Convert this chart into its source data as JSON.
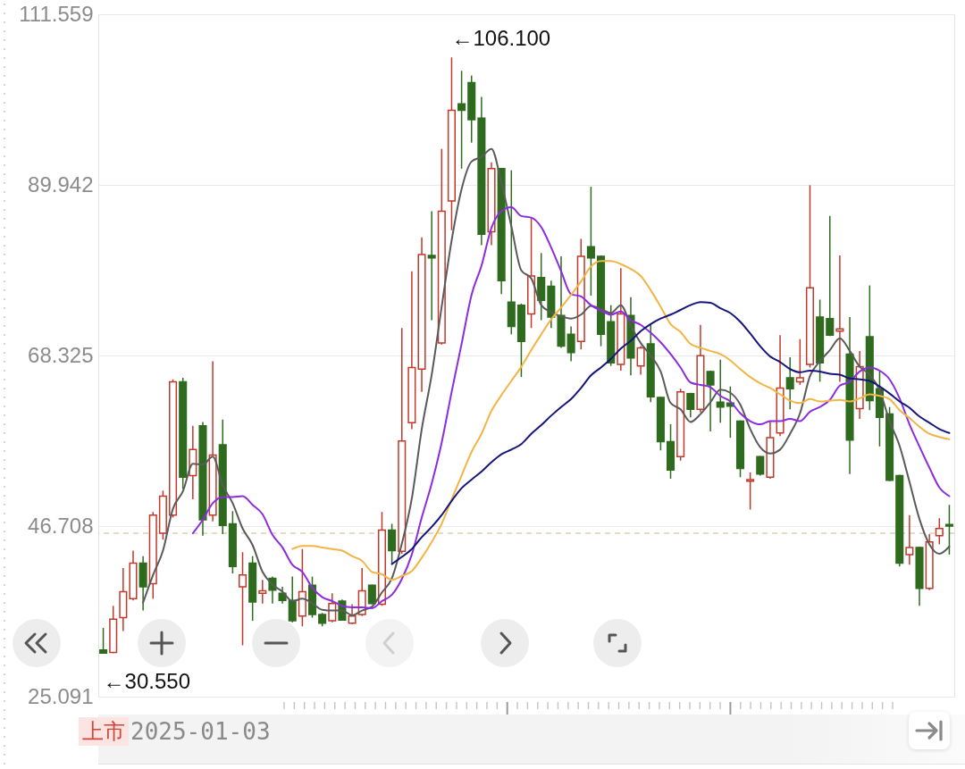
{
  "chart_data": {
    "type": "candlestick",
    "categories": [
      null,
      null,
      null,
      null,
      null,
      null,
      null,
      null,
      null,
      null,
      null,
      null,
      null,
      null,
      null,
      null,
      null,
      null,
      null,
      null,
      null,
      null,
      null,
      null,
      null,
      null,
      null,
      null,
      null,
      null,
      null,
      null,
      null,
      null,
      null,
      null,
      null,
      null,
      null,
      null,
      null,
      null,
      null,
      null,
      null,
      null,
      null,
      null,
      null,
      null,
      null,
      null,
      null,
      null,
      null,
      null,
      null,
      null,
      null,
      null,
      null,
      null,
      null,
      null,
      null,
      null,
      null,
      null,
      null,
      null,
      null,
      null,
      null,
      null,
      null,
      null,
      null,
      null,
      null,
      null,
      null,
      null,
      null,
      null,
      null,
      null
    ],
    "ohlc": [
      [
        31.0,
        33.8,
        30.55,
        30.6
      ],
      [
        30.7,
        36.6,
        30.6,
        34.9
      ],
      [
        35.1,
        41.4,
        33.4,
        38.4
      ],
      [
        37.5,
        43.6,
        37.3,
        42.0
      ],
      [
        42.0,
        42.9,
        36.0,
        39.0
      ],
      [
        39.4,
        48.5,
        37.5,
        48.1
      ],
      [
        45.8,
        51.2,
        45.0,
        50.5
      ],
      [
        48.1,
        65.3,
        47.8,
        65.0
      ],
      [
        65.0,
        65.5,
        51.4,
        52.9
      ],
      [
        53.1,
        59.4,
        50.1,
        56.4
      ],
      [
        59.4,
        59.9,
        45.5,
        47.5
      ],
      [
        48.1,
        67.6,
        47.3,
        55.7
      ],
      [
        57.0,
        60.2,
        45.7,
        46.8
      ],
      [
        47.0,
        48.6,
        40.7,
        41.6
      ],
      [
        39.0,
        43.4,
        31.6,
        40.5
      ],
      [
        42.0,
        42.9,
        34.7,
        37.1
      ],
      [
        38.2,
        39.9,
        36.9,
        38.5
      ],
      [
        40.1,
        40.3,
        36.9,
        38.6
      ],
      [
        38.2,
        39.0,
        36.9,
        37.3
      ],
      [
        37.3,
        40.3,
        34.5,
        34.7
      ],
      [
        35.3,
        43.8,
        34.0,
        38.4
      ],
      [
        39.2,
        40.3,
        35.1,
        35.5
      ],
      [
        35.5,
        35.7,
        34.0,
        34.4
      ],
      [
        34.7,
        38.2,
        34.5,
        36.9
      ],
      [
        37.2,
        37.4,
        34.7,
        34.8
      ],
      [
        34.4,
        36.8,
        34.3,
        35.3
      ],
      [
        35.5,
        41.4,
        35.3,
        38.5
      ],
      [
        39.2,
        39.3,
        36.8,
        36.9
      ],
      [
        36.8,
        48.5,
        36.6,
        46.2
      ],
      [
        46.2,
        47.0,
        41.8,
        43.6
      ],
      [
        43.5,
        71.8,
        43.2,
        57.5
      ],
      [
        59.8,
        79.0,
        59.0,
        66.8
      ],
      [
        66.6,
        83.3,
        63.7,
        81.1
      ],
      [
        81.0,
        86.6,
        72.8,
        80.7
      ],
      [
        69.9,
        94.5,
        69.7,
        86.6
      ],
      [
        87.9,
        106.1,
        84.2,
        99.4
      ],
      [
        100.2,
        104.4,
        92.0,
        99.4
      ],
      [
        102.9,
        103.8,
        95.3,
        98.2
      ],
      [
        98.4,
        101.1,
        82.3,
        83.7
      ],
      [
        84.0,
        92.8,
        82.3,
        92.0
      ],
      [
        92.0,
        92.1,
        76.1,
        77.8
      ],
      [
        75.1,
        91.8,
        71.0,
        72.0
      ],
      [
        74.7,
        74.9,
        65.6,
        70.1
      ],
      [
        73.6,
        85.8,
        71.8,
        78.4
      ],
      [
        78.2,
        81.3,
        72.8,
        75.3
      ],
      [
        77.1,
        77.8,
        71.8,
        73.2
      ],
      [
        73.4,
        80.9,
        69.3,
        69.5
      ],
      [
        71.0,
        72.0,
        67.6,
        68.7
      ],
      [
        70.1,
        83.1,
        69.1,
        80.9
      ],
      [
        82.1,
        89.7,
        75.9,
        80.7
      ],
      [
        80.9,
        81.0,
        69.5,
        71.0
      ],
      [
        72.6,
        74.7,
        67.0,
        67.4
      ],
      [
        67.2,
        79.4,
        66.4,
        73.6
      ],
      [
        73.4,
        75.7,
        65.8,
        68.0
      ],
      [
        67.0,
        69.5,
        65.9,
        69.3
      ],
      [
        69.8,
        72.4,
        62.4,
        63.1
      ],
      [
        63.0,
        63.1,
        56.3,
        57.4
      ],
      [
        57.4,
        59.6,
        52.7,
        53.8
      ],
      [
        55.5,
        64.1,
        55.0,
        63.7
      ],
      [
        63.5,
        63.6,
        60.5,
        61.5
      ],
      [
        61.5,
        72.2,
        61.1,
        68.3
      ],
      [
        66.3,
        66.4,
        58.7,
        64.6
      ],
      [
        62.4,
        67.8,
        59.8,
        61.8
      ],
      [
        62.3,
        64.4,
        57.9,
        61.9
      ],
      [
        60.0,
        60.1,
        52.9,
        54.0
      ],
      [
        52.4,
        53.5,
        48.8,
        52.6
      ],
      [
        55.5,
        55.6,
        53.1,
        53.3
      ],
      [
        52.9,
        60.0,
        52.7,
        57.9
      ],
      [
        58.5,
        70.9,
        58.1,
        64.2
      ],
      [
        65.5,
        68.1,
        61.5,
        64.1
      ],
      [
        65.0,
        70.4,
        64.6,
        65.5
      ],
      [
        67.2,
        89.9,
        66.8,
        76.9
      ],
      [
        73.2,
        75.4,
        65.0,
        67.4
      ],
      [
        73.0,
        86.0,
        70.8,
        70.9
      ],
      [
        71.4,
        81.0,
        65.0,
        71.7
      ],
      [
        68.5,
        73.2,
        53.3,
        57.6
      ],
      [
        61.6,
        68.9,
        60.3,
        66.9
      ],
      [
        70.7,
        77.2,
        61.4,
        62.6
      ],
      [
        64.1,
        66.3,
        56.8,
        60.5
      ],
      [
        60.9,
        61.8,
        52.4,
        52.5
      ],
      [
        53.1,
        53.2,
        41.6,
        42.0
      ],
      [
        43.1,
        48.1,
        41.8,
        44.0
      ],
      [
        44.0,
        44.1,
        36.6,
        38.8
      ],
      [
        38.8,
        45.7,
        38.6,
        44.7
      ],
      [
        45.5,
        47.7,
        44.4,
        46.4
      ],
      [
        46.9,
        49.4,
        43.1,
        46.7
      ]
    ],
    "colors": [
      "#2e6b1e",
      "#c0392b",
      "#c0392b",
      "#c0392b",
      "#2e6b1e",
      "#c0392b",
      "#c0392b",
      "#c0392b",
      "#2e6b1e",
      "#c0392b",
      "#2e6b1e",
      "#c0392b",
      "#2e6b1e",
      "#2e6b1e",
      "#c0392b",
      "#2e6b1e",
      "#c0392b",
      "#2e6b1e",
      "#2e6b1e",
      "#2e6b1e",
      "#c0392b",
      "#2e6b1e",
      "#2e6b1e",
      "#c0392b",
      "#2e6b1e",
      "#c0392b",
      "#c0392b",
      "#2e6b1e",
      "#c0392b",
      "#2e6b1e",
      "#c0392b",
      "#c0392b",
      "#c0392b",
      "#2e6b1e",
      "#c0392b",
      "#c0392b",
      "#2e6b1e",
      "#2e6b1e",
      "#2e6b1e",
      "#c0392b",
      "#2e6b1e",
      "#2e6b1e",
      "#2e6b1e",
      "#c0392b",
      "#2e6b1e",
      "#2e6b1e",
      "#2e6b1e",
      "#2e6b1e",
      "#c0392b",
      "#2e6b1e",
      "#2e6b1e",
      "#2e6b1e",
      "#c0392b",
      "#2e6b1e",
      "#c0392b",
      "#2e6b1e",
      "#2e6b1e",
      "#2e6b1e",
      "#c0392b",
      "#2e6b1e",
      "#c0392b",
      "#2e6b1e",
      "#2e6b1e",
      "#2e6b1e",
      "#2e6b1e",
      "#c0392b",
      "#2e6b1e",
      "#c0392b",
      "#c0392b",
      "#2e6b1e",
      "#c0392b",
      "#c0392b",
      "#2e6b1e",
      "#2e6b1e",
      "#c0392b",
      "#2e6b1e",
      "#c0392b",
      "#2e6b1e",
      "#2e6b1e",
      "#2e6b1e",
      "#2e6b1e",
      "#c0392b",
      "#2e6b1e",
      "#c0392b",
      "#c0392b",
      "#2e6b1e"
    ],
    "series": [
      {
        "type": "line",
        "color": "#5a5a5a",
        "values": [
          null,
          null,
          null,
          null,
          37.0,
          40.5,
          43.6,
          48.9,
          51.1,
          54.6,
          54.5,
          55.5,
          51.9,
          49.6,
          46.4,
          44.3,
          40.9,
          39.3,
          38.4,
          37.2,
          37.5,
          36.9,
          36.1,
          36.0,
          36.0,
          35.4,
          36.0,
          36.5,
          38.3,
          40.1,
          44.5,
          50.2,
          59.0,
          65.9,
          74.5,
          82.9,
          89.4,
          92.9,
          93.5,
          94.5,
          90.2,
          84.7,
          79.1,
          78.1,
          74.7,
          73.8,
          73.3,
          73.0,
          73.5,
          74.6,
          74.2,
          73.7,
          74.7,
          72.1,
          69.9,
          68.3,
          66.3,
          62.3,
          61.5,
          59.9,
          60.9,
          62.4,
          64.0,
          63.6,
          62.1,
          59.0,
          56.7,
          55.9,
          56.4,
          58.4,
          61.0,
          65.7,
          67.6,
          69.0,
          70.5,
          68.9,
          66.9,
          65.9,
          63.9,
          60.0,
          56.9,
          52.3,
          47.6,
          44.4,
          43.2,
          44.1
        ]
      },
      {
        "type": "line",
        "color": "#8c2be0",
        "values": [
          null,
          null,
          null,
          null,
          null,
          null,
          null,
          null,
          null,
          45.8,
          47.5,
          49.6,
          50.4,
          50.4,
          50.5,
          49.4,
          48.2,
          45.6,
          44.0,
          41.8,
          40.9,
          38.9,
          37.7,
          37.2,
          36.6,
          36.4,
          36.4,
          36.3,
          37.2,
          38.0,
          40.0,
          43.1,
          47.8,
          52.1,
          57.3,
          63.7,
          69.8,
          76.0,
          79.7,
          84.5,
          86.6,
          87.1,
          86.0,
          85.8,
          84.6,
          82.0,
          79.0,
          76.1,
          75.8,
          74.7,
          74.0,
          73.5,
          73.9,
          72.8,
          72.2,
          71.2,
          70.0,
          68.5,
          66.8,
          64.9,
          64.6,
          64.3,
          63.2,
          62.5,
          61.0,
          60.0,
          59.6,
          60.0,
          60.0,
          60.3,
          60.0,
          61.2,
          61.8,
          62.7,
          64.5,
          65.0,
          66.3,
          66.8,
          66.4,
          65.3,
          62.9,
          59.6,
          56.8,
          54.1,
          51.6,
          50.5
        ]
      },
      {
        "type": "line",
        "color": "#f2b544",
        "values": [
          null,
          null,
          null,
          null,
          null,
          null,
          null,
          null,
          null,
          null,
          null,
          null,
          null,
          null,
          null,
          null,
          null,
          null,
          null,
          43.8,
          44.2,
          44.2,
          44.0,
          43.8,
          43.6,
          42.9,
          42.3,
          40.9,
          40.6,
          39.9,
          40.4,
          41.0,
          42.7,
          44.7,
          47.0,
          50.1,
          53.1,
          56.1,
          58.4,
          61.3,
          63.3,
          65.1,
          66.9,
          69.0,
          71.0,
          72.9,
          74.4,
          76.0,
          77.7,
          79.6,
          80.3,
          80.3,
          79.9,
          79.3,
          78.4,
          76.6,
          74.5,
          72.3,
          71.3,
          69.8,
          69.3,
          68.9,
          68.5,
          67.7,
          66.6,
          65.6,
          64.8,
          64.2,
          63.4,
          62.6,
          62.3,
          62.8,
          62.5,
          62.6,
          62.7,
          62.5,
          62.9,
          63.4,
          63.2,
          62.8,
          61.4,
          60.4,
          59.3,
          58.4,
          58.0,
          57.7
        ]
      },
      {
        "type": "line",
        "color": "#16167a",
        "values": [
          null,
          null,
          null,
          null,
          null,
          null,
          null,
          null,
          null,
          null,
          null,
          null,
          null,
          null,
          null,
          null,
          null,
          null,
          null,
          null,
          null,
          null,
          null,
          null,
          null,
          null,
          null,
          null,
          null,
          41.9,
          42.8,
          43.8,
          45.3,
          46.6,
          48.1,
          49.9,
          51.5,
          52.6,
          53.6,
          54.8,
          55.8,
          56.4,
          57.1,
          58.4,
          59.5,
          60.7,
          61.8,
          62.8,
          64.2,
          65.8,
          66.8,
          67.9,
          69.2,
          70.2,
          71.4,
          72.3,
          73.0,
          73.5,
          74.1,
          74.7,
          75.1,
          75.0,
          74.3,
          73.7,
          72.6,
          71.1,
          69.5,
          68.2,
          67.5,
          66.6,
          66.2,
          66.4,
          66.3,
          66.0,
          65.9,
          65.4,
          65.3,
          65.1,
          64.4,
          63.5,
          62.5,
          61.7,
          60.6,
          59.8,
          59.0,
          58.5
        ]
      }
    ],
    "ylim": [
      25.091,
      111.559
    ],
    "yticks": [
      111.559,
      89.942,
      68.325,
      46.708,
      25.091
    ],
    "grid": "y",
    "tick_labels": "y",
    "ref_lines": [
      {
        "axis": "y",
        "value": 45.8,
        "color": "#d4b48c",
        "line_style": "dashed"
      }
    ],
    "annotations": [
      "←106.100",
      "←30.550",
      "上市",
      "2025-01-03"
    ]
  }
}
